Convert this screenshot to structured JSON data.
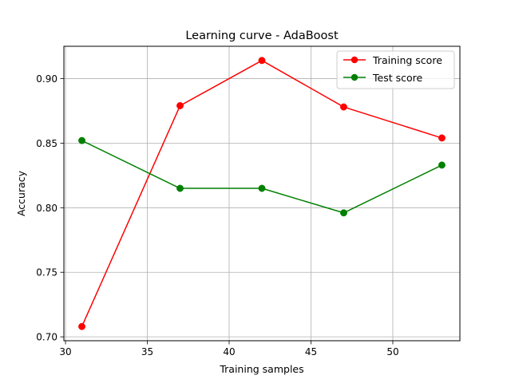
{
  "chart_data": {
    "type": "line",
    "title": "Learning curve - AdaBoost",
    "xlabel": "Training samples",
    "ylabel": "Accuracy",
    "x": [
      31,
      37,
      42,
      47,
      53
    ],
    "series": [
      {
        "name": "Training score",
        "color": "#ff0000",
        "marker": "circle",
        "values": [
          0.708,
          0.879,
          0.914,
          0.878,
          0.854
        ]
      },
      {
        "name": "Test score",
        "color": "#008000",
        "marker": "circle",
        "values": [
          0.852,
          0.815,
          0.815,
          0.796,
          0.833
        ]
      }
    ],
    "xlim": [
      29.9,
      54.1
    ],
    "ylim": [
      0.697,
      0.925
    ],
    "xticks": [
      30,
      35,
      40,
      45,
      50
    ],
    "yticks": [
      0.7,
      0.75,
      0.8,
      0.85,
      0.9
    ],
    "xtick_labels": [
      "30",
      "35",
      "40",
      "45",
      "50"
    ],
    "ytick_labels": [
      "0.70",
      "0.75",
      "0.80",
      "0.85",
      "0.90"
    ],
    "grid": true,
    "grid_color": "#b0b0b0",
    "legend_position": "top-right"
  }
}
